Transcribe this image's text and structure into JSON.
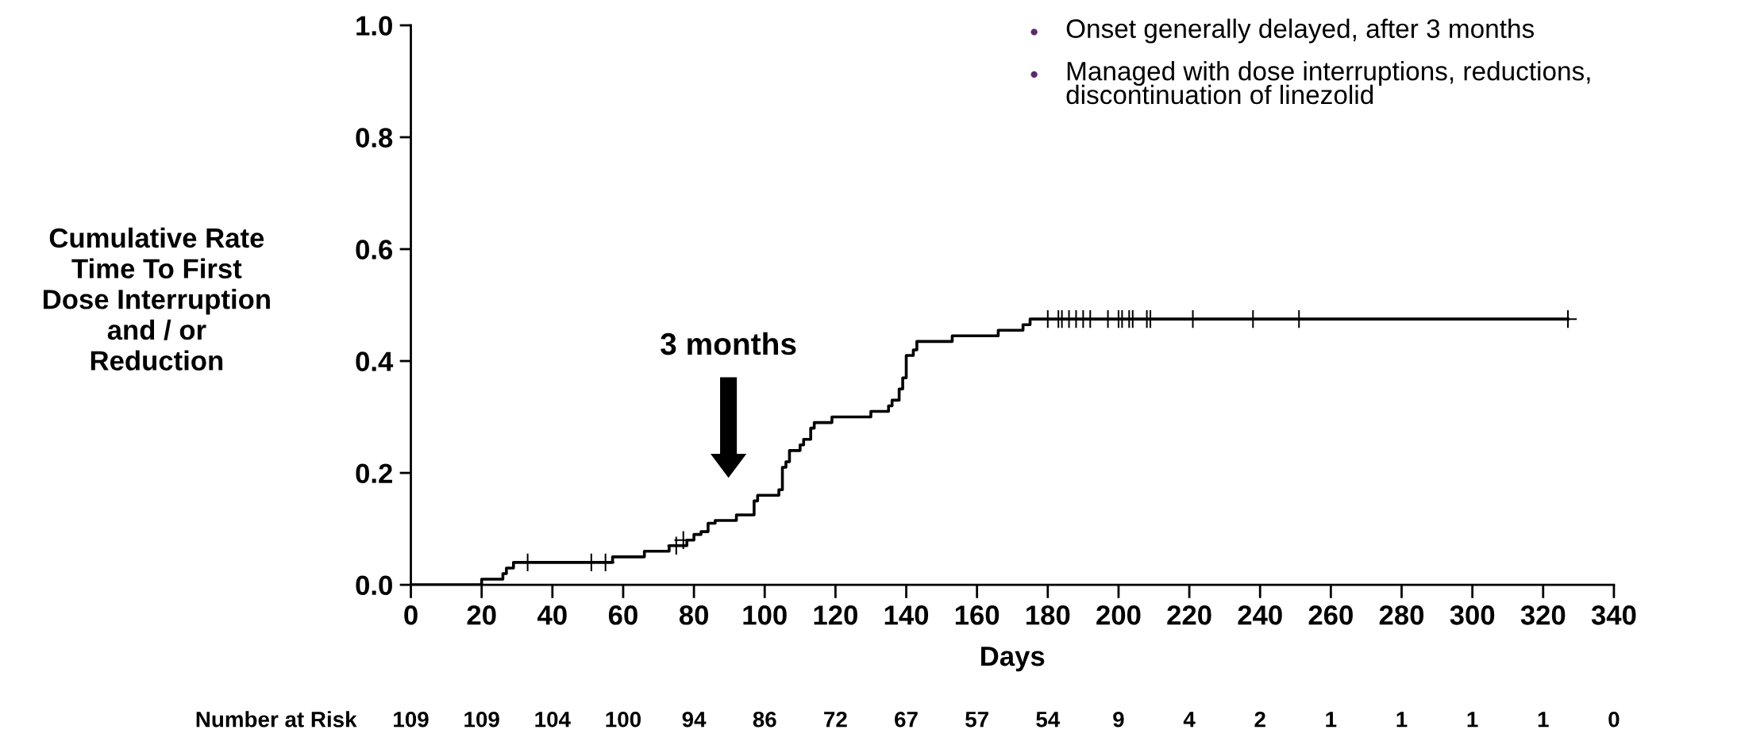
{
  "chart_data": {
    "type": "step",
    "xlabel": "Days",
    "ylabel": "Cumulative Rate\nTime To First\nDose Interruption\nand / or\nReduction",
    "series": [
      {
        "color": "#000000",
        "x": [
          0,
          20,
          26,
          27,
          29,
          57,
          66,
          73,
          78,
          80,
          82,
          84,
          86,
          92,
          97,
          98,
          104,
          105,
          106,
          107,
          110,
          111,
          113,
          114,
          119,
          130,
          135,
          136,
          138,
          139,
          140,
          142,
          143,
          153,
          166,
          173,
          175,
          327
        ],
        "values": [
          0.0,
          0.01,
          0.02,
          0.03,
          0.04,
          0.05,
          0.06,
          0.07,
          0.08,
          0.09,
          0.095,
          0.11,
          0.115,
          0.125,
          0.15,
          0.16,
          0.17,
          0.21,
          0.22,
          0.24,
          0.25,
          0.26,
          0.28,
          0.29,
          0.3,
          0.31,
          0.32,
          0.33,
          0.35,
          0.37,
          0.41,
          0.42,
          0.435,
          0.445,
          0.455,
          0.465,
          0.475,
          0.475
        ]
      },
      {
        "type": "scatter",
        "marker": "cross",
        "color": "#000000",
        "x": [
          33,
          51,
          55,
          75,
          77,
          180,
          183,
          184,
          186,
          188,
          190,
          192,
          197,
          200,
          201,
          203,
          204,
          208,
          209,
          221,
          238,
          251,
          327
        ],
        "values": [
          0.04,
          0.04,
          0.04,
          0.07,
          0.08,
          0.475,
          0.475,
          0.475,
          0.475,
          0.475,
          0.475,
          0.475,
          0.475,
          0.475,
          0.475,
          0.475,
          0.475,
          0.475,
          0.475,
          0.475,
          0.475,
          0.475,
          0.475
        ]
      }
    ],
    "xlim": [
      0,
      340
    ],
    "xticks": [
      0,
      20,
      40,
      60,
      80,
      100,
      120,
      140,
      160,
      180,
      200,
      220,
      240,
      260,
      280,
      300,
      320,
      340
    ],
    "ylim": [
      0,
      1
    ],
    "yticks": [
      {
        "value": 0,
        "label": "0.0"
      },
      {
        "value": 0.2,
        "label": "0.2"
      },
      {
        "value": 0.4,
        "label": "0.4"
      },
      {
        "value": 0.6,
        "label": "0.6"
      },
      {
        "value": 0.8,
        "label": "0.8"
      },
      {
        "value": 1,
        "label": "1.0"
      }
    ],
    "grid": false,
    "legend": false,
    "annotations": [
      "3 months",
      "Onset generally delayed, after 3 months",
      "Managed with dose interruptions, reductions,\ndiscontinuation of linezolid",
      "Number at Risk",
      "109",
      "109",
      "104",
      "100",
      "94",
      "86",
      "72",
      "67",
      "57",
      "54",
      "9",
      "4",
      "2",
      "1",
      "1",
      "1",
      "1",
      "0"
    ]
  }
}
